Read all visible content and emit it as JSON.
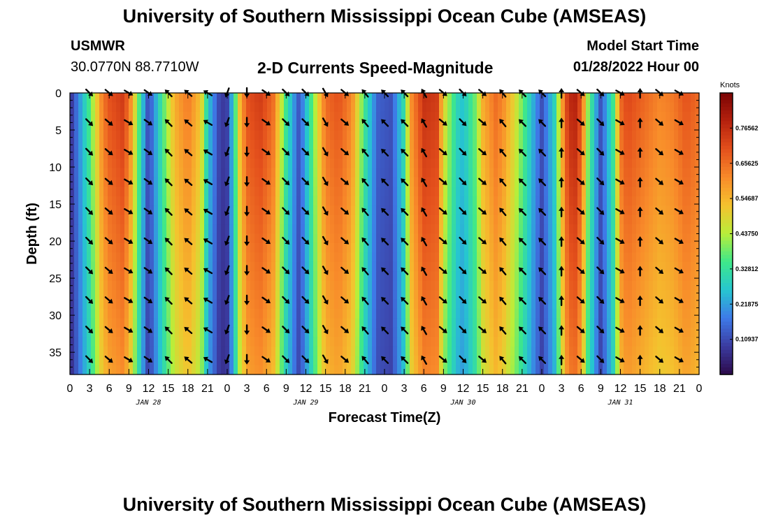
{
  "header": {
    "title": "University of Southern Mississippi Ocean Cube (AMSEAS)",
    "station": "USMWR",
    "coordinates": "30.0770N  88.7710W",
    "subtitle": "2-D Currents Speed-Magnitude",
    "model_start_label": "Model Start Time",
    "model_start_value": "01/28/2022 Hour 00"
  },
  "footer": {
    "title": "University of Southern Mississippi Ocean Cube (AMSEAS)"
  },
  "colors": {
    "scale": [
      "#2c0a4a",
      "#3b3ba0",
      "#3e7ae8",
      "#26c6d0",
      "#3ee88a",
      "#b9ee3a",
      "#f5c22e",
      "#f88a2a",
      "#e4501c",
      "#b5210e",
      "#7a0404"
    ]
  },
  "chart_data": {
    "type": "heatmap",
    "xlabel": "Forecast Time(Z)",
    "ylabel": "Depth (ft)",
    "x_range_hours": [
      0,
      96
    ],
    "ylim": [
      0,
      38
    ],
    "y_ticks": [
      0,
      5,
      10,
      15,
      20,
      25,
      30,
      35
    ],
    "x_ticks": [
      "0",
      "3",
      "6",
      "9",
      "12",
      "15",
      "18",
      "21",
      "0",
      "3",
      "6",
      "9",
      "12",
      "15",
      "18",
      "21",
      "0",
      "3",
      "6",
      "9",
      "12",
      "15",
      "18",
      "21",
      "0",
      "3",
      "6",
      "9",
      "12",
      "15",
      "18",
      "21",
      "0"
    ],
    "day_labels": [
      "JAN 28",
      "JAN 29",
      "JAN 30",
      "JAN 31"
    ],
    "colorbar": {
      "label": "Knots",
      "min": 0,
      "max": 0.875,
      "ticks": [
        "0.76562",
        "0.65625",
        "0.54687",
        "0.43750",
        "0.32812",
        "0.21875",
        "0.10937"
      ]
    },
    "speed_profile": {
      "hours": [
        0,
        3,
        5,
        6,
        8,
        9,
        11,
        12,
        14,
        16,
        18,
        20,
        21,
        23,
        24,
        25,
        26,
        27,
        29,
        31,
        33,
        35,
        37,
        39,
        41,
        43,
        45,
        47,
        49,
        51,
        52,
        54,
        56,
        57,
        59,
        60,
        62,
        63,
        65,
        66,
        68,
        70,
        72,
        74,
        75,
        76,
        77,
        78,
        79,
        81,
        83,
        84,
        85,
        86,
        88,
        90,
        92,
        94,
        96
      ],
      "speed_knots": [
        0.06,
        0.36,
        0.64,
        0.7,
        0.74,
        0.66,
        0.28,
        0.1,
        0.34,
        0.56,
        0.64,
        0.52,
        0.28,
        0.08,
        0.1,
        0.3,
        0.56,
        0.7,
        0.74,
        0.66,
        0.34,
        0.12,
        0.38,
        0.66,
        0.7,
        0.62,
        0.34,
        0.14,
        0.12,
        0.32,
        0.6,
        0.76,
        0.74,
        0.5,
        0.3,
        0.26,
        0.4,
        0.56,
        0.66,
        0.62,
        0.48,
        0.3,
        0.12,
        0.3,
        0.56,
        0.76,
        0.8,
        0.7,
        0.42,
        0.12,
        0.36,
        0.66,
        0.72,
        0.7,
        0.66,
        0.62,
        0.64,
        0.7,
        0.66
      ],
      "depth_factor_at_bottom": 0.82
    },
    "vectors": {
      "hours": [
        3,
        6,
        9,
        12,
        15,
        18,
        21,
        24,
        27,
        30,
        33,
        36,
        39,
        42,
        45,
        48,
        51,
        54,
        57,
        60,
        63,
        66,
        69,
        72,
        75,
        78,
        81,
        84,
        87,
        90,
        93
      ],
      "depths_ft": [
        0,
        4,
        8,
        12,
        16,
        20,
        24,
        28,
        32,
        36
      ],
      "direction_deg": [
        135,
        130,
        120,
        125,
        315,
        310,
        300,
        200,
        180,
        125,
        135,
        135,
        150,
        130,
        320,
        315,
        315,
        330,
        130,
        135,
        130,
        320,
        315,
        315,
        0,
        130,
        135,
        120,
        0,
        130,
        120
      ]
    }
  }
}
